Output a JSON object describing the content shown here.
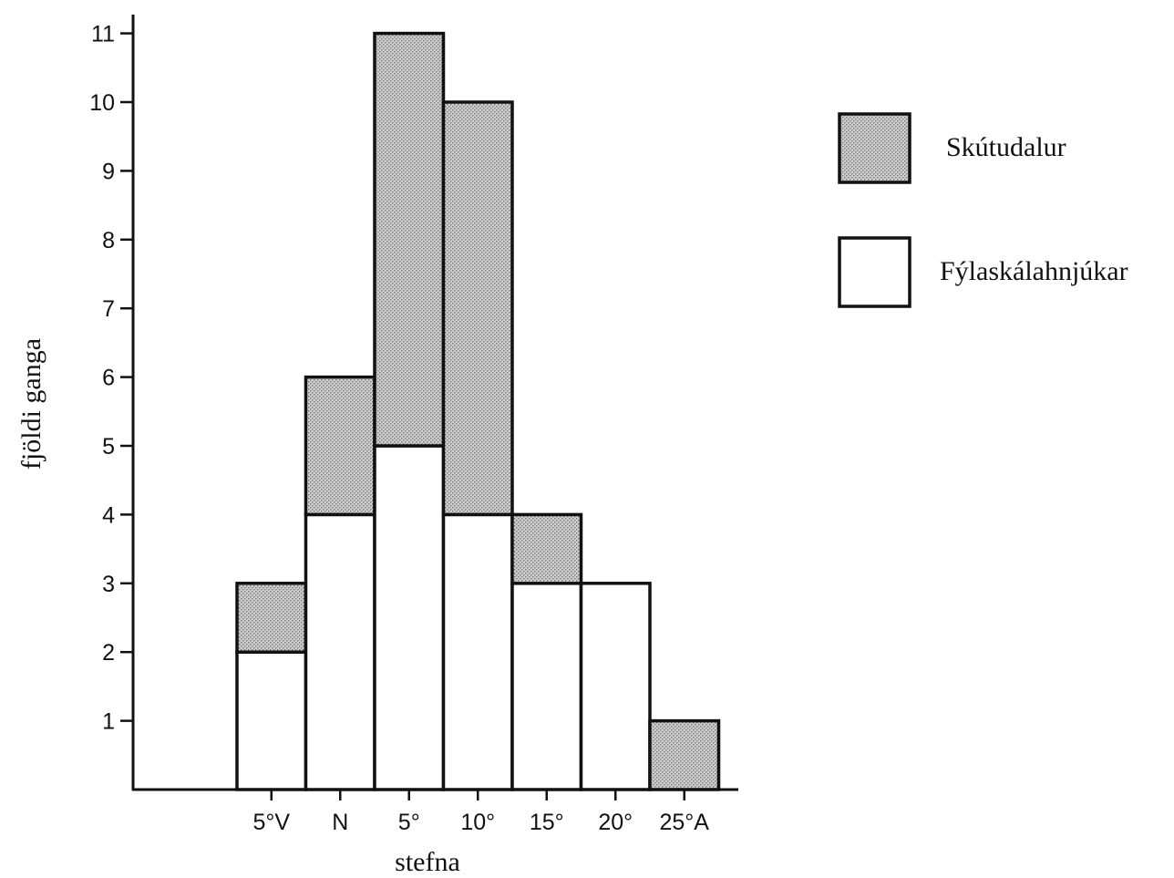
{
  "chart_data": {
    "type": "bar",
    "stacked": true,
    "categories": [
      "5°V",
      "N",
      "5°",
      "10°",
      "15°",
      "20°",
      "25°A"
    ],
    "series": [
      {
        "name": "Fýlaskálahnjúkar",
        "values": [
          2,
          4,
          5,
          4,
          3,
          3,
          0
        ],
        "pattern": "white"
      },
      {
        "name": "Skútudalur",
        "values": [
          1,
          2,
          6,
          6,
          1,
          0,
          1
        ],
        "pattern": "stipple"
      }
    ],
    "title": "",
    "xlabel": "stefna",
    "ylabel": "fjöldi ganga",
    "ylim": [
      0,
      11
    ],
    "yticks": [
      1,
      2,
      3,
      4,
      5,
      6,
      7,
      8,
      9,
      10,
      11
    ],
    "legend_position": "right",
    "grid": false,
    "colors": {
      "stroke": "#111111",
      "stipple_fill": "#cfcfcf",
      "stipple_dot": "#6e6e6e",
      "open_fill": "#ffffff"
    }
  }
}
